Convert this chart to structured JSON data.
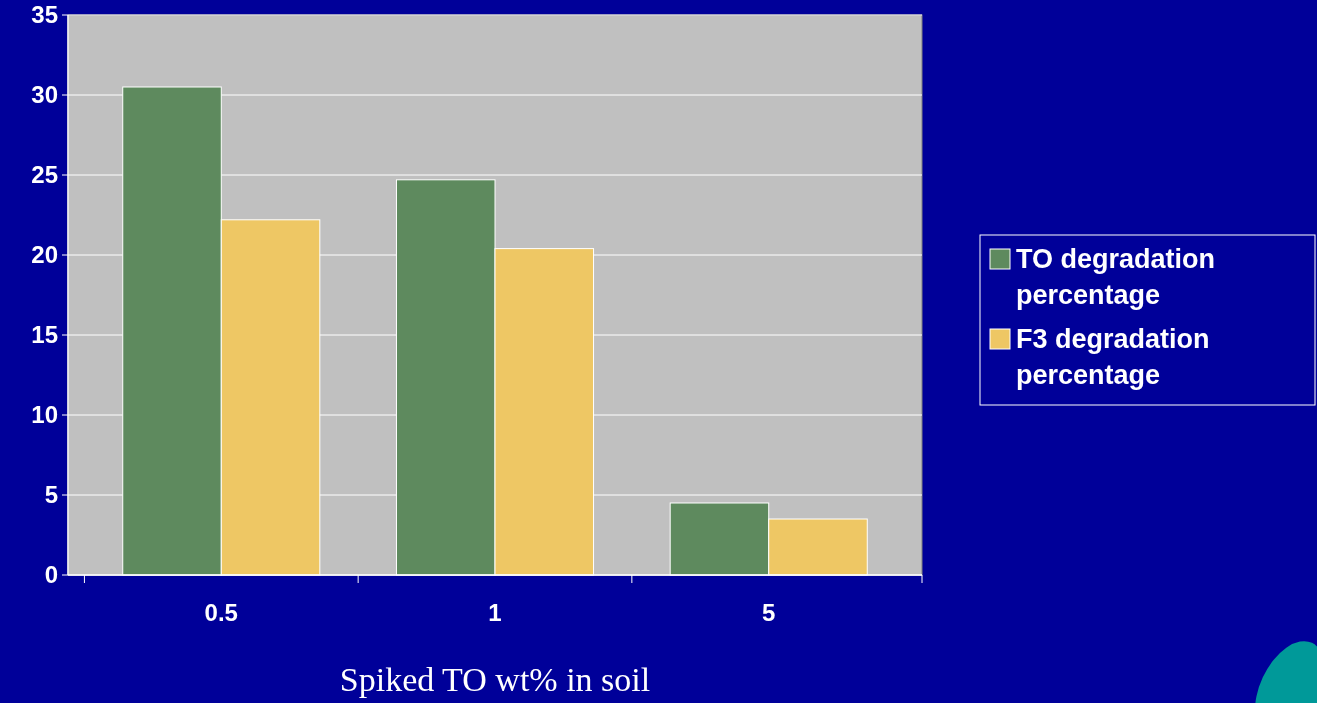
{
  "chart_data": {
    "type": "bar",
    "xlabel": "Spiked TO wt% in soil",
    "categories": [
      "0.5",
      "1",
      "5"
    ],
    "series": [
      {
        "name": "TO degradation percentage",
        "color": "#5e8a5e",
        "values": [
          30.5,
          24.7,
          4.5
        ]
      },
      {
        "name": "F3 degradation percentage",
        "color": "#eec764",
        "values": [
          22.2,
          20.4,
          3.5
        ]
      }
    ],
    "ylim": [
      0,
      35
    ],
    "yticks": [
      0,
      5,
      10,
      15,
      20,
      25,
      30,
      35
    ],
    "grid": "y",
    "legend": "right"
  }
}
